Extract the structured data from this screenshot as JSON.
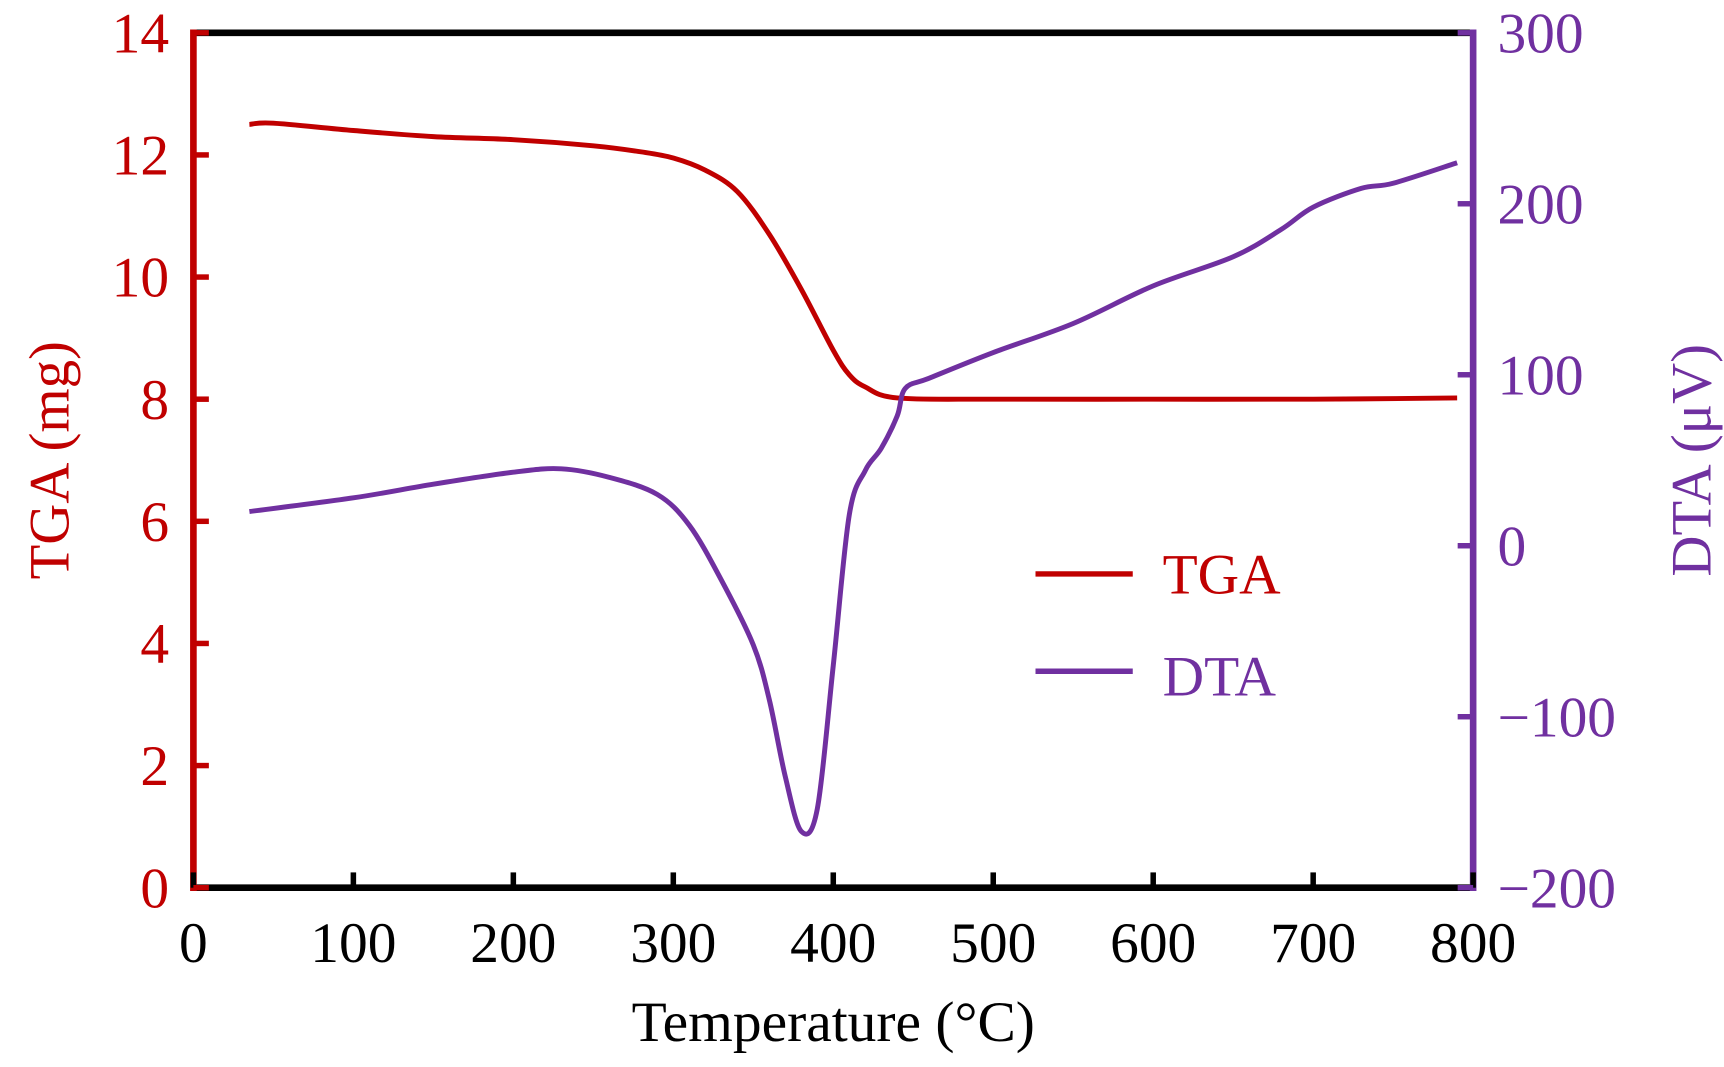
{
  "chart_data": {
    "type": "line",
    "xlabel": "Temperature (°C)",
    "ylabel_left": "TGA (mg)",
    "ylabel_right": "DTA (μV)",
    "xlim": [
      0,
      800
    ],
    "ylim_left": [
      0,
      14
    ],
    "ylim_right": [
      -200,
      300
    ],
    "x_ticks": [
      "0",
      "100",
      "200",
      "300",
      "400",
      "500",
      "600",
      "700",
      "800"
    ],
    "y_ticks_left": [
      "0",
      "2",
      "4",
      "6",
      "8",
      "10",
      "12",
      "14"
    ],
    "y_ticks_right": [
      "−200",
      "−100",
      "0",
      "100",
      "200",
      "300"
    ],
    "grid": false,
    "legend_position": "center-right",
    "colors": {
      "TGA": "#c00000",
      "DTA": "#7030a0",
      "frame": "#000000"
    },
    "series": [
      {
        "name": "TGA",
        "axis": "left",
        "x": [
          35,
          50,
          100,
          150,
          200,
          250,
          280,
          300,
          320,
          340,
          360,
          380,
          400,
          410,
          420,
          440,
          500,
          600,
          700,
          790
        ],
        "y": [
          12.5,
          12.52,
          12.4,
          12.3,
          12.25,
          12.15,
          12.05,
          11.95,
          11.75,
          11.4,
          10.7,
          9.8,
          8.8,
          8.4,
          8.2,
          8.02,
          8.0,
          8.0,
          8.0,
          8.02
        ]
      },
      {
        "name": "DTA",
        "axis": "right",
        "x": [
          35,
          100,
          150,
          200,
          230,
          260,
          290,
          310,
          330,
          350,
          360,
          370,
          380,
          390,
          400,
          410,
          420,
          430,
          440,
          445,
          460,
          500,
          550,
          600,
          650,
          680,
          700,
          730,
          750,
          790
        ],
        "y": [
          20,
          28,
          36,
          43,
          45,
          40,
          30,
          12,
          -20,
          -58,
          -90,
          -135,
          -167,
          -154,
          -70,
          18,
          44,
          57,
          76,
          92,
          98,
          113,
          130,
          152,
          169,
          185,
          198,
          209,
          212,
          224
        ]
      }
    ]
  }
}
